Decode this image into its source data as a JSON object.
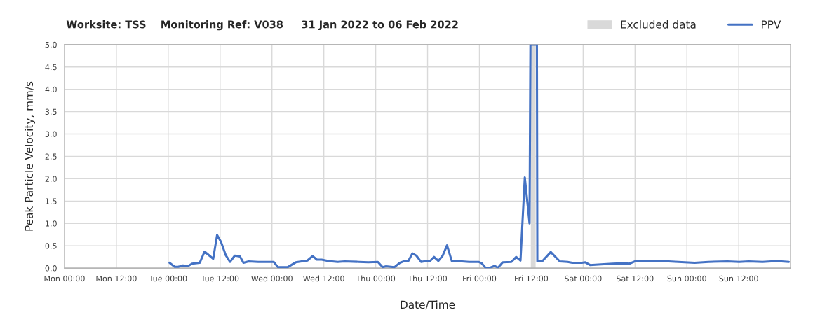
{
  "chart_data": {
    "type": "line",
    "title": "Worksite: TSS    Monitoring Ref: V038     31 Jan 2022 to 06 Feb 2022",
    "xlabel": "Date/Time",
    "ylabel": "Peak Particle Velocity, mm/s",
    "xlim": [
      "2022-01-31T00:00",
      "2022-02-07T00:00"
    ],
    "xticks": [
      {
        "value": "2022-01-31T00:00",
        "label": "Mon 00:00"
      },
      {
        "value": "2022-01-31T12:00",
        "label": "Mon 12:00"
      },
      {
        "value": "2022-02-01T00:00",
        "label": "Tue 00:00"
      },
      {
        "value": "2022-02-01T12:00",
        "label": "Tue 12:00"
      },
      {
        "value": "2022-02-02T00:00",
        "label": "Wed 00:00"
      },
      {
        "value": "2022-02-02T12:00",
        "label": "Wed 12:00"
      },
      {
        "value": "2022-02-03T00:00",
        "label": "Thu 00:00"
      },
      {
        "value": "2022-02-03T12:00",
        "label": "Thu 12:00"
      },
      {
        "value": "2022-02-04T00:00",
        "label": "Fri 00:00"
      },
      {
        "value": "2022-02-04T12:00",
        "label": "Fri 12:00"
      },
      {
        "value": "2022-02-05T00:00",
        "label": "Sat 00:00"
      },
      {
        "value": "2022-02-05T12:00",
        "label": "Sat 12:00"
      },
      {
        "value": "2022-02-06T00:00",
        "label": "Sun 00:00"
      },
      {
        "value": "2022-02-06T12:00",
        "label": "Sun 12:00"
      },
      {
        "value": "2022-02-07T00:00",
        "label": null
      }
    ],
    "ylim": [
      0,
      5
    ],
    "yticks": [
      {
        "value": 0,
        "label": "0.0"
      },
      0.5,
      {
        "value": 1,
        "label": "1.0"
      },
      1.5,
      {
        "value": 2,
        "label": "2.0"
      },
      2.5,
      {
        "value": 3,
        "label": "3.0"
      },
      3.5,
      {
        "value": 4,
        "label": "4.0"
      },
      4.5,
      {
        "value": 5,
        "label": "5.0"
      }
    ],
    "grid": true,
    "legend": "top right",
    "line_style": "solid",
    "marker": "none",
    "bands": [
      {
        "axis": "x",
        "from": "2022-02-04T12:00",
        "to": "2022-02-04T13:00",
        "label": "Excluded data",
        "color": "#d9d9d9"
      }
    ],
    "series": [
      {
        "name": "PPV",
        "color": "#4472c4",
        "x": [
          "2022-02-01T00:18",
          "2022-02-01T01:30",
          "2022-02-01T02:18",
          "2022-02-01T03:24",
          "2022-02-01T04:30",
          "2022-02-01T05:30",
          "2022-02-01T07:18",
          "2022-02-01T08:24",
          "2022-02-01T10:24",
          "2022-02-01T11:18",
          "2022-02-01T12:12",
          "2022-02-01T13:18",
          "2022-02-01T14:18",
          "2022-02-01T15:24",
          "2022-02-01T16:36",
          "2022-02-01T17:24",
          "2022-02-01T18:36",
          "2022-02-01T20:48",
          "2022-02-02T00:24",
          "2022-02-02T01:24",
          "2022-02-02T03:36",
          "2022-02-02T05:30",
          "2022-02-02T08:12",
          "2022-02-02T09:24",
          "2022-02-02T10:24",
          "2022-02-02T11:30",
          "2022-02-02T13:06",
          "2022-02-02T15:12",
          "2022-02-02T16:48",
          "2022-02-02T20:06",
          "2022-02-02T22:18",
          "2022-02-03T00:30",
          "2022-02-03T01:36",
          "2022-02-03T02:24",
          "2022-02-03T04:18",
          "2022-02-03T05:36",
          "2022-02-03T06:24",
          "2022-02-03T07:30",
          "2022-02-03T08:30",
          "2022-02-03T09:24",
          "2022-02-03T10:30",
          "2022-02-03T11:36",
          "2022-02-03T12:30",
          "2022-02-03T13:30",
          "2022-02-03T14:30",
          "2022-02-03T15:30",
          "2022-02-03T16:30",
          "2022-02-03T17:36",
          "2022-02-03T20:00",
          "2022-02-03T21:36",
          "2022-02-03T23:48",
          "2022-02-04T00:30",
          "2022-02-04T01:24",
          "2022-02-04T02:30",
          "2022-02-04T03:30",
          "2022-02-04T04:18",
          "2022-02-04T05:24",
          "2022-02-04T07:24",
          "2022-02-04T08:30",
          "2022-02-04T09:30",
          "2022-02-04T10:30",
          "2022-02-04T11:36",
          "2022-02-04T11:48",
          "2022-02-04T13:18",
          "2022-02-04T13:24",
          "2022-02-04T14:30",
          "2022-02-04T16:30",
          "2022-02-04T18:36",
          "2022-02-04T20:24",
          "2022-02-04T21:30",
          "2022-02-04T23:42",
          "2022-02-05T00:30",
          "2022-02-05T01:36",
          "2022-02-05T03:30",
          "2022-02-05T06:48",
          "2022-02-05T09:42",
          "2022-02-05T10:42",
          "2022-02-05T11:54",
          "2022-02-05T16:30",
          "2022-02-05T19:48",
          "2022-02-05T22:00",
          "2022-02-06T01:48",
          "2022-02-06T05:00",
          "2022-02-06T09:24",
          "2022-02-06T12:06",
          "2022-02-06T14:18",
          "2022-02-06T17:30",
          "2022-02-06T20:48",
          "2022-02-06T23:36"
        ],
        "values": [
          0.12,
          0.03,
          0.03,
          0.06,
          0.04,
          0.1,
          0.12,
          0.37,
          0.21,
          0.74,
          0.59,
          0.29,
          0.14,
          0.28,
          0.26,
          0.12,
          0.15,
          0.14,
          0.14,
          0.02,
          0.02,
          0.13,
          0.17,
          0.27,
          0.19,
          0.19,
          0.16,
          0.14,
          0.15,
          0.14,
          0.13,
          0.14,
          0.02,
          0.04,
          0.02,
          0.12,
          0.15,
          0.15,
          0.33,
          0.28,
          0.14,
          0.16,
          0.15,
          0.25,
          0.16,
          0.28,
          0.51,
          0.16,
          0.15,
          0.14,
          0.14,
          0.11,
          0.01,
          0.01,
          0.05,
          0.01,
          0.13,
          0.14,
          0.25,
          0.17,
          2.03,
          1.0,
          5.0,
          5.0,
          0.15,
          0.15,
          0.36,
          0.15,
          0.14,
          0.12,
          0.12,
          0.13,
          0.07,
          0.08,
          0.1,
          0.11,
          0.1,
          0.15,
          0.16,
          0.15,
          0.14,
          0.12,
          0.14,
          0.15,
          0.14,
          0.15,
          0.14,
          0.16,
          0.14
        ]
      }
    ]
  }
}
